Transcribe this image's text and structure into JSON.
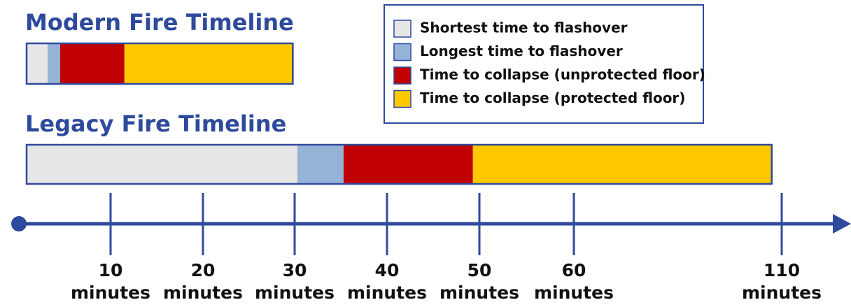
{
  "chart_data": {
    "type": "bar",
    "orientation": "horizontal",
    "stacked": true,
    "categories": [
      "Modern Fire Timeline",
      "Legacy Fire Timeline"
    ],
    "series": [
      {
        "name": "Shortest time to flashover",
        "color": "#e6e6e6",
        "values": [
          2.5,
          30.3
        ]
      },
      {
        "name": "Longest time to flashover",
        "color": "#95b3d7",
        "values": [
          1.5,
          5
        ]
      },
      {
        "name": "Time to collapse (unprotected floor)",
        "color": "#c00000",
        "values": [
          7.5,
          14
        ]
      },
      {
        "name": "Time to collapse (protected floor)",
        "color": "#ffc800",
        "values": [
          18.3,
          58.3
        ]
      }
    ],
    "xlim": [
      0,
      110
    ],
    "xticks": [
      10,
      20,
      30,
      40,
      50,
      60,
      110
    ],
    "xunit": "minutes",
    "legend": "upper right"
  }
}
